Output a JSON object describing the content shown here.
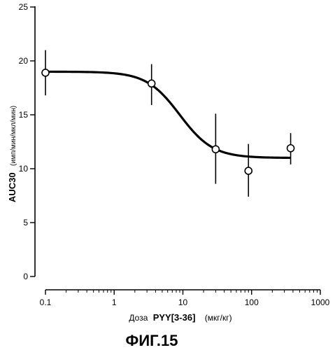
{
  "chart_data": {
    "type": "scatter",
    "x_scale": "log",
    "xlim": [
      0.1,
      1000
    ],
    "ylim": [
      0,
      25
    ],
    "x_ticks": [
      "0.1",
      "1",
      "10",
      "100",
      "1000"
    ],
    "y_ticks": [
      "0",
      "5",
      "10",
      "15",
      "20",
      "25"
    ],
    "ylabel_main": "AUC30",
    "ylabel_unit": "(имп/мин/мкл/мин)",
    "xlabel_prefix": "Доза",
    "xlabel_bold": "PYY[3-36]",
    "xlabel_unit": "(мкг/кг)",
    "points": [
      {
        "x": 0.1,
        "y": 18.9,
        "y_low": 16.8,
        "y_high": 21.0
      },
      {
        "x": 3.5,
        "y": 17.9,
        "y_low": 15.9,
        "y_high": 19.7
      },
      {
        "x": 30,
        "y": 11.8,
        "y_low": 8.6,
        "y_high": 15.1
      },
      {
        "x": 90,
        "y": 9.8,
        "y_low": 7.4,
        "y_high": 12.3
      },
      {
        "x": 370,
        "y": 11.9,
        "y_low": 10.4,
        "y_high": 13.3
      }
    ],
    "fit_curve": {
      "top": 19.0,
      "bottom": 11.0,
      "ec50": 9,
      "hill": 1.8
    },
    "grid": false,
    "legend": "none"
  },
  "caption": "ФИГ.15"
}
